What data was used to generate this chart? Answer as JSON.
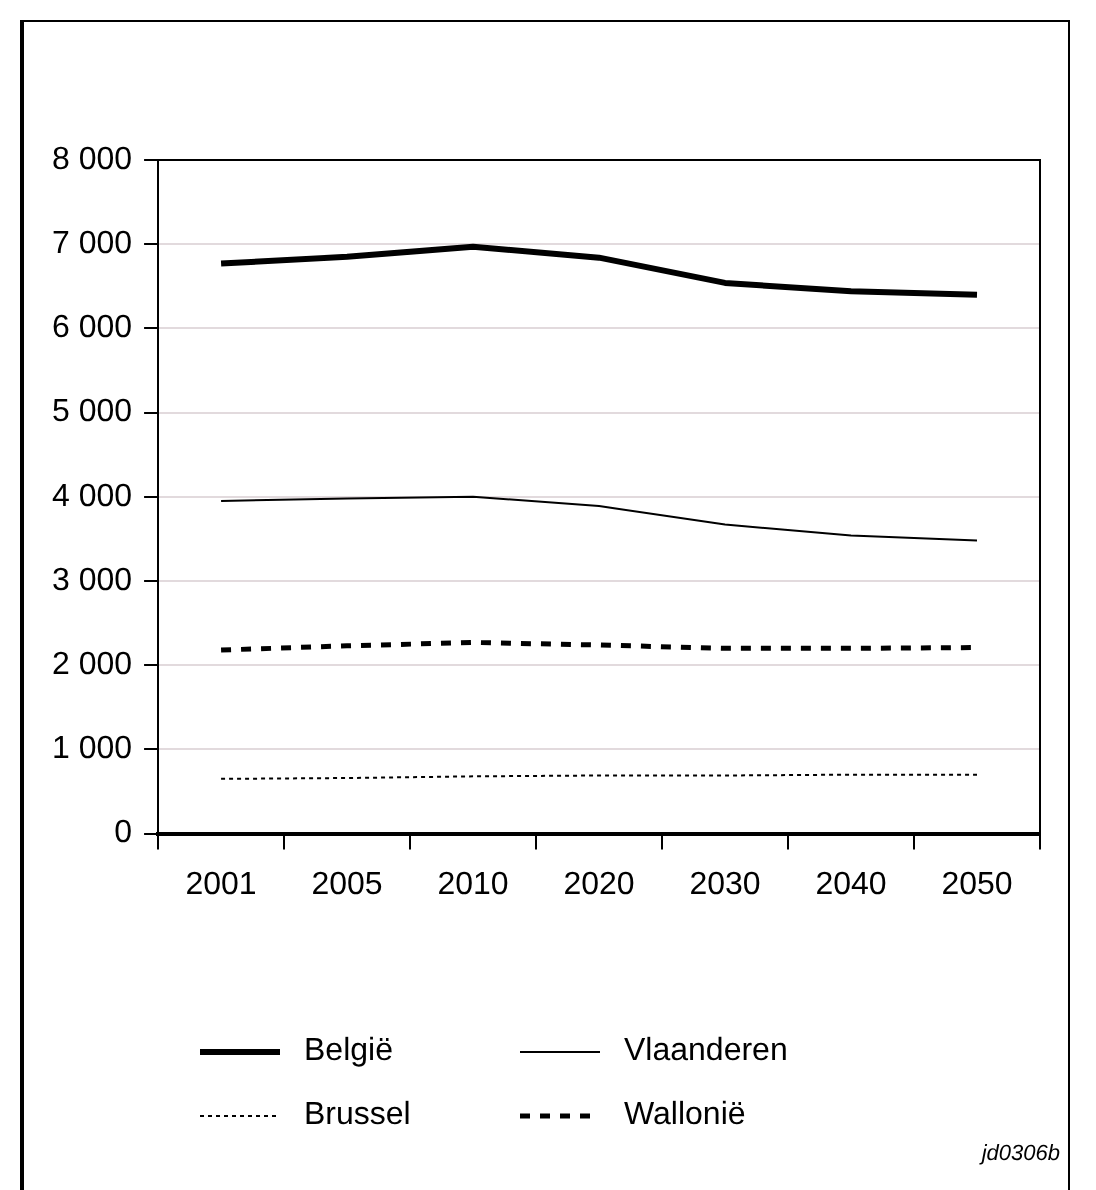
{
  "chart_data": {
    "type": "line",
    "categories": [
      "2001",
      "2005",
      "2010",
      "2020",
      "2030",
      "2040",
      "2050"
    ],
    "series": [
      {
        "name": "België",
        "color": "#000000",
        "line_style": "solid",
        "values": [
          6770,
          6850,
          6970,
          6840,
          6540,
          6440,
          6400
        ]
      },
      {
        "name": "Vlaanderen",
        "color": "#000000",
        "line_style": "solid",
        "values": [
          3950,
          3980,
          4000,
          3890,
          3670,
          3540,
          3480
        ]
      },
      {
        "name": "Brussel",
        "color": "#000000",
        "line_style": "dotted",
        "values": [
          650,
          660,
          680,
          690,
          690,
          700,
          700
        ]
      },
      {
        "name": "Wallonië",
        "color": "#000000",
        "line_style": "dashed",
        "values": [
          2180,
          2230,
          2270,
          2240,
          2200,
          2200,
          2210
        ]
      }
    ],
    "ylim": [
      0,
      8000
    ],
    "yticks": [
      {
        "value": 0,
        "label": "0"
      },
      {
        "value": 1000,
        "label": "1 000"
      },
      {
        "value": 2000,
        "label": "2 000"
      },
      {
        "value": 3000,
        "label": "3 000"
      },
      {
        "value": 4000,
        "label": "4 000"
      },
      {
        "value": 5000,
        "label": "5 000"
      },
      {
        "value": 6000,
        "label": "6 000"
      },
      {
        "value": 7000,
        "label": "7 000"
      },
      {
        "value": 8000,
        "label": "8 000"
      }
    ],
    "grid": "y",
    "legend": "bottom",
    "marker": "none",
    "annotations": [
      "jd0306b"
    ]
  }
}
